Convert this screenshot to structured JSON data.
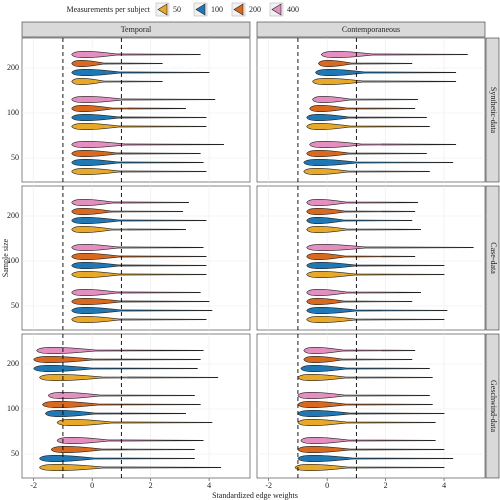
{
  "chart_data": {
    "type": "violin",
    "legend_title": "Measurements per subject",
    "series": [
      {
        "name": "50",
        "color": "#E8A92B"
      },
      {
        "name": "100",
        "color": "#1F78B4"
      },
      {
        "name": "200",
        "color": "#D9691E"
      },
      {
        "name": "400",
        "color": "#E38FC0"
      }
    ],
    "columns": [
      "Temporal",
      "Contemporaneous"
    ],
    "rows": [
      "Synthetic-data",
      "Case-data",
      "Geschwind-data"
    ],
    "categories": [
      "50",
      "100",
      "200"
    ],
    "x_label": "Standardized edge weights",
    "y_label": "Sample size",
    "xlim": [
      -2.4,
      5.4
    ],
    "xticks": [
      -2,
      0,
      2,
      4
    ],
    "reference_lines": [
      -1,
      1
    ],
    "grid": true,
    "violins": [
      [
        [
          [
            -0.7,
            3.9
          ],
          [
            -0.7,
            3.8
          ],
          [
            -0.7,
            3.7
          ],
          [
            -0.7,
            4.5
          ]
        ],
        [
          [
            -0.7,
            3.9
          ],
          [
            -0.7,
            3.9
          ],
          [
            -0.7,
            3.2
          ],
          [
            -0.7,
            4.2
          ]
        ],
        [
          [
            -0.7,
            2.4
          ],
          [
            -0.7,
            4.0
          ],
          [
            -0.7,
            2.4
          ],
          [
            -0.7,
            3.7
          ]
        ]
      ],
      [
        [
          [
            -0.8,
            3.5
          ],
          [
            -0.8,
            4.3
          ],
          [
            -0.7,
            3.4
          ],
          [
            -0.6,
            4.4
          ]
        ],
        [
          [
            -0.7,
            3.5
          ],
          [
            -0.7,
            3.4
          ],
          [
            -0.6,
            3.0
          ],
          [
            -0.5,
            3.1
          ]
        ],
        [
          [
            -0.5,
            4.4
          ],
          [
            -0.4,
            4.4
          ],
          [
            -0.3,
            2.9
          ],
          [
            -0.2,
            4.8
          ]
        ]
      ],
      [
        [
          [
            -0.7,
            3.9
          ],
          [
            -0.7,
            4.1
          ],
          [
            -0.7,
            4.0
          ],
          [
            -0.7,
            3.7
          ]
        ],
        [
          [
            -0.7,
            3.9
          ],
          [
            -0.7,
            3.9
          ],
          [
            -0.7,
            3.9
          ],
          [
            -0.7,
            3.8
          ]
        ],
        [
          [
            -0.7,
            3.2
          ],
          [
            -0.7,
            3.9
          ],
          [
            -0.7,
            3.1
          ],
          [
            -0.7,
            3.3
          ]
        ]
      ],
      [
        [
          [
            -0.7,
            4.0
          ],
          [
            -0.7,
            4.1
          ],
          [
            -0.7,
            2.9
          ],
          [
            -0.7,
            3.2
          ]
        ],
        [
          [
            -0.7,
            4.0
          ],
          [
            -0.7,
            4.0
          ],
          [
            -0.7,
            3.0
          ],
          [
            -0.7,
            5.0
          ]
        ],
        [
          [
            -0.7,
            3.2
          ],
          [
            -0.7,
            2.9
          ],
          [
            -0.7,
            3.0
          ],
          [
            -0.7,
            3.1
          ]
        ]
      ],
      [
        [
          [
            -1.8,
            4.4
          ],
          [
            -1.8,
            3.5
          ],
          [
            -1.4,
            3.5
          ],
          [
            -1.2,
            3.8
          ]
        ],
        [
          [
            -1.2,
            4.1
          ],
          [
            -1.6,
            3.2
          ],
          [
            -1.7,
            3.7
          ],
          [
            -1.5,
            3.5
          ]
        ],
        [
          [
            -1.8,
            4.3
          ],
          [
            -2.0,
            3.6
          ],
          [
            -2.0,
            3.7
          ],
          [
            -1.9,
            3.8
          ]
        ]
      ],
      [
        [
          [
            -1.1,
            4.0
          ],
          [
            -1.0,
            4.3
          ],
          [
            -1.0,
            4.0
          ],
          [
            -0.9,
            3.7
          ]
        ],
        [
          [
            -1.0,
            3.7
          ],
          [
            -1.0,
            4.0
          ],
          [
            -1.0,
            3.6
          ],
          [
            -1.0,
            3.5
          ]
        ],
        [
          [
            -1.0,
            3.6
          ],
          [
            -0.9,
            3.5
          ],
          [
            -0.8,
            2.9
          ],
          [
            -0.8,
            3.0
          ]
        ]
      ]
    ]
  }
}
